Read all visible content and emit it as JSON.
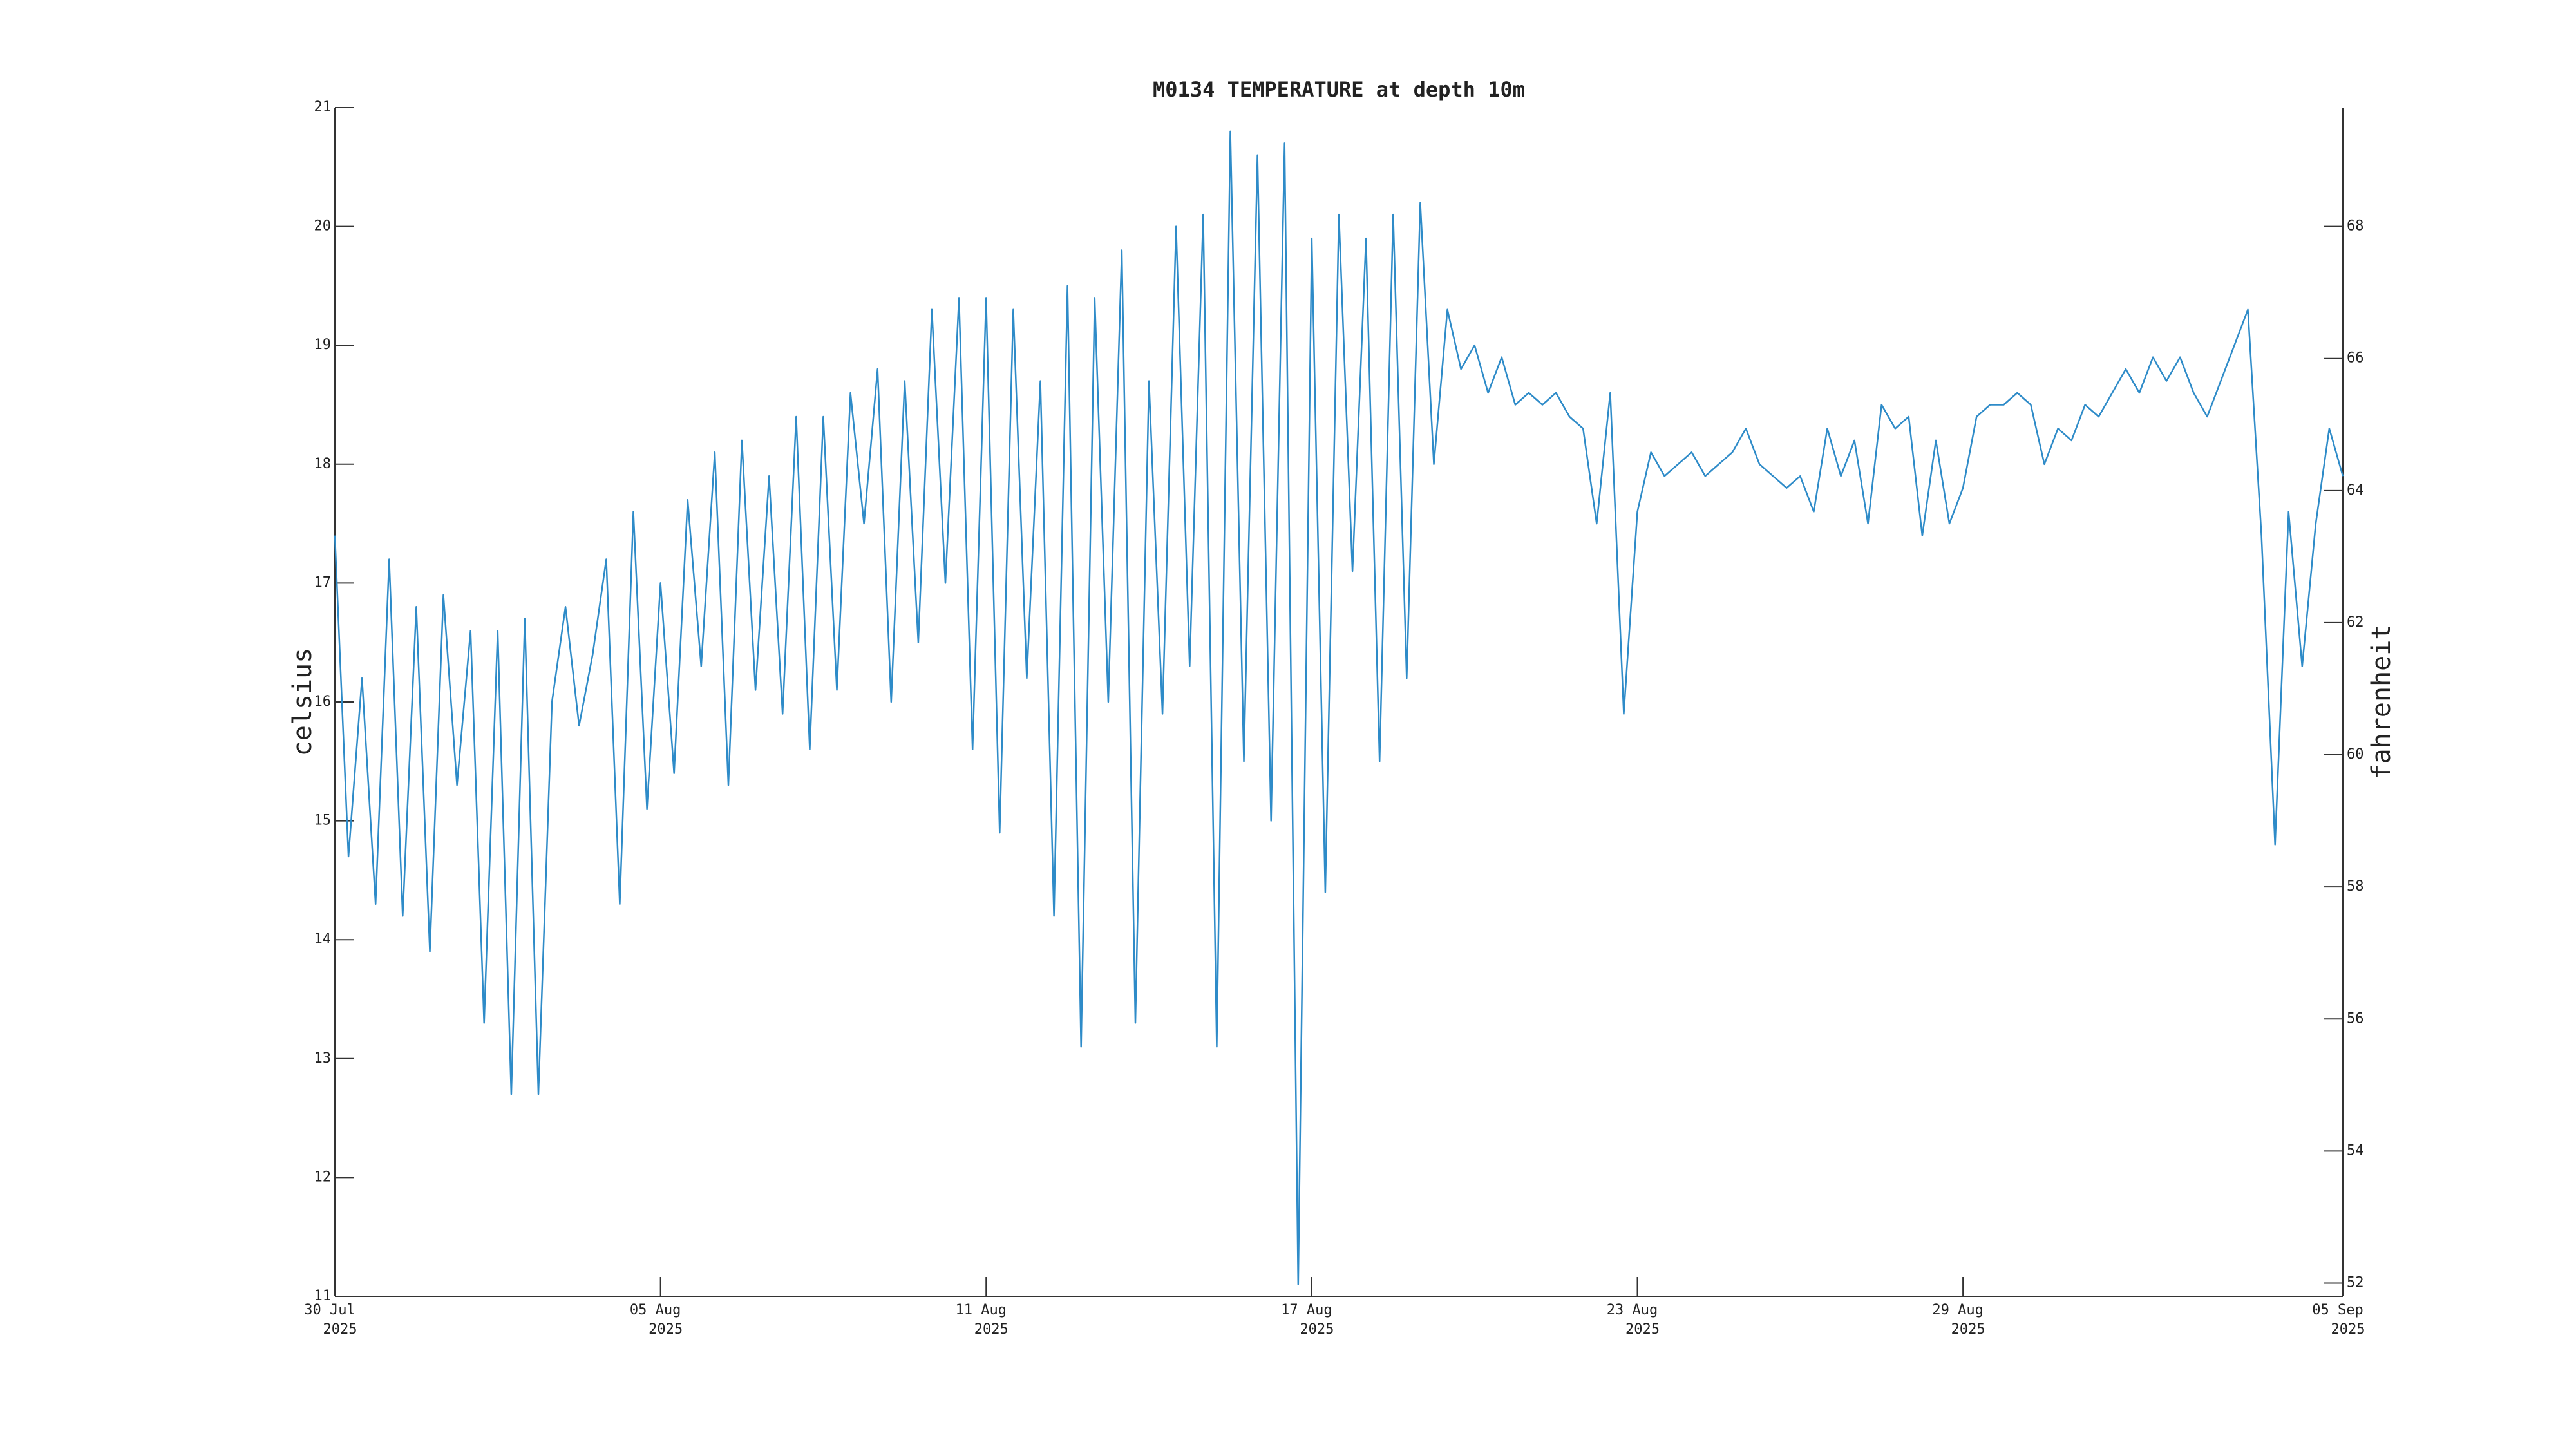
{
  "chart_data": {
    "type": "line",
    "title": "M0134 TEMPERATURE at depth 10m",
    "ylabel": "celsius",
    "y2label": "fahrenheit",
    "color": "#2e8bc8",
    "xlim": [
      "2025-07-30 00:00",
      "2025-09-05 00:00"
    ],
    "xticks": [
      {
        "value": "2025-07-30 00:00",
        "label": [
          "30 Jul",
          "2025"
        ]
      },
      {
        "value": "2025-08-05 00:00",
        "label": [
          "05 Aug",
          "2025"
        ]
      },
      {
        "value": "2025-08-11 00:00",
        "label": [
          "11 Aug",
          "2025"
        ]
      },
      {
        "value": "2025-08-17 00:00",
        "label": [
          "17 Aug",
          "2025"
        ]
      },
      {
        "value": "2025-08-23 00:00",
        "label": [
          "23 Aug",
          "2025"
        ]
      },
      {
        "value": "2025-08-29 00:00",
        "label": [
          "29 Aug",
          "2025"
        ]
      },
      {
        "value": "2025-09-05 00:00",
        "label": [
          "05 Sep",
          "2025"
        ]
      }
    ],
    "ylim": [
      11,
      21
    ],
    "yticks": [
      11,
      12,
      13,
      14,
      15,
      16,
      17,
      18,
      19,
      20,
      21
    ],
    "y2lim": [
      51.8,
      69.8
    ],
    "y2ticks": [
      52,
      54,
      56,
      58,
      60,
      62,
      64,
      66,
      68
    ],
    "x": [
      "2025-07-30 00:00",
      "2025-07-30 06:00",
      "2025-07-30 12:00",
      "2025-07-30 18:00",
      "2025-07-31 00:00",
      "2025-07-31 06:00",
      "2025-07-31 12:00",
      "2025-07-31 18:00",
      "2025-08-01 00:00",
      "2025-08-01 06:00",
      "2025-08-01 12:00",
      "2025-08-01 18:00",
      "2025-08-02 00:00",
      "2025-08-02 06:00",
      "2025-08-02 12:00",
      "2025-08-02 18:00",
      "2025-08-03 00:00",
      "2025-08-03 06:00",
      "2025-08-03 12:00",
      "2025-08-03 18:00",
      "2025-08-04 00:00",
      "2025-08-04 06:00",
      "2025-08-04 12:00",
      "2025-08-04 18:00",
      "2025-08-05 00:00",
      "2025-08-05 06:00",
      "2025-08-05 12:00",
      "2025-08-05 18:00",
      "2025-08-06 00:00",
      "2025-08-06 06:00",
      "2025-08-06 12:00",
      "2025-08-06 18:00",
      "2025-08-07 00:00",
      "2025-08-07 06:00",
      "2025-08-07 12:00",
      "2025-08-07 18:00",
      "2025-08-08 00:00",
      "2025-08-08 06:00",
      "2025-08-08 12:00",
      "2025-08-08 18:00",
      "2025-08-09 00:00",
      "2025-08-09 06:00",
      "2025-08-09 12:00",
      "2025-08-09 18:00",
      "2025-08-10 00:00",
      "2025-08-10 06:00",
      "2025-08-10 12:00",
      "2025-08-10 18:00",
      "2025-08-11 00:00",
      "2025-08-11 06:00",
      "2025-08-11 12:00",
      "2025-08-11 18:00",
      "2025-08-12 00:00",
      "2025-08-12 06:00",
      "2025-08-12 12:00",
      "2025-08-12 18:00",
      "2025-08-13 00:00",
      "2025-08-13 06:00",
      "2025-08-13 12:00",
      "2025-08-13 18:00",
      "2025-08-14 00:00",
      "2025-08-14 06:00",
      "2025-08-14 12:00",
      "2025-08-14 18:00",
      "2025-08-15 00:00",
      "2025-08-15 06:00",
      "2025-08-15 12:00",
      "2025-08-15 18:00",
      "2025-08-16 00:00",
      "2025-08-16 06:00",
      "2025-08-16 12:00",
      "2025-08-16 18:00",
      "2025-08-17 00:00",
      "2025-08-17 06:00",
      "2025-08-17 12:00",
      "2025-08-17 18:00",
      "2025-08-18 00:00",
      "2025-08-18 06:00",
      "2025-08-18 12:00",
      "2025-08-18 18:00",
      "2025-08-19 00:00",
      "2025-08-19 06:00",
      "2025-08-19 12:00",
      "2025-08-19 18:00",
      "2025-08-20 00:00",
      "2025-08-20 06:00",
      "2025-08-20 12:00",
      "2025-08-20 18:00",
      "2025-08-21 00:00",
      "2025-08-21 06:00",
      "2025-08-21 12:00",
      "2025-08-21 18:00",
      "2025-08-22 00:00",
      "2025-08-22 06:00",
      "2025-08-22 12:00",
      "2025-08-22 18:00",
      "2025-08-23 00:00",
      "2025-08-23 06:00",
      "2025-08-23 12:00",
      "2025-08-23 18:00",
      "2025-08-24 00:00",
      "2025-08-24 06:00",
      "2025-08-24 12:00",
      "2025-08-24 18:00",
      "2025-08-25 00:00",
      "2025-08-25 06:00",
      "2025-08-25 12:00",
      "2025-08-25 18:00",
      "2025-08-26 00:00",
      "2025-08-26 06:00",
      "2025-08-26 12:00",
      "2025-08-26 18:00",
      "2025-08-27 00:00",
      "2025-08-27 06:00",
      "2025-08-27 12:00",
      "2025-08-27 18:00",
      "2025-08-28 00:00",
      "2025-08-28 06:00",
      "2025-08-28 12:00",
      "2025-08-28 18:00",
      "2025-08-29 00:00",
      "2025-08-29 06:00",
      "2025-08-29 12:00",
      "2025-08-29 18:00",
      "2025-08-30 00:00",
      "2025-08-30 06:00",
      "2025-08-30 12:00",
      "2025-08-30 18:00",
      "2025-08-31 00:00",
      "2025-08-31 06:00",
      "2025-08-31 12:00",
      "2025-08-31 18:00",
      "2025-09-01 00:00",
      "2025-09-01 06:00",
      "2025-09-01 12:00",
      "2025-09-01 18:00",
      "2025-09-02 00:00",
      "2025-09-02 06:00",
      "2025-09-02 12:00",
      "2025-09-02 18:00",
      "2025-09-03 00:00",
      "2025-09-03 06:00",
      "2025-09-03 12:00",
      "2025-09-03 18:00",
      "2025-09-04 00:00",
      "2025-09-04 06:00",
      "2025-09-04 12:00",
      "2025-09-04 18:00",
      "2025-09-05 00:00"
    ],
    "values": [
      17.4,
      14.7,
      16.2,
      14.3,
      17.2,
      14.2,
      16.8,
      13.9,
      16.9,
      15.3,
      16.6,
      13.3,
      16.6,
      12.7,
      16.7,
      12.7,
      16.0,
      16.8,
      15.8,
      16.4,
      17.2,
      14.3,
      17.6,
      15.1,
      17.0,
      15.4,
      17.7,
      16.3,
      18.1,
      15.3,
      18.2,
      16.1,
      17.9,
      15.9,
      18.4,
      15.6,
      18.4,
      16.1,
      18.6,
      17.5,
      18.8,
      16.0,
      18.7,
      16.5,
      19.3,
      17.0,
      19.4,
      15.6,
      19.4,
      14.9,
      19.3,
      16.2,
      18.7,
      14.2,
      19.5,
      13.1,
      19.4,
      16.0,
      19.8,
      13.3,
      18.7,
      15.9,
      20.0,
      16.3,
      20.1,
      13.1,
      20.8,
      15.5,
      20.6,
      15.0,
      20.7,
      11.1,
      19.9,
      14.4,
      20.1,
      17.1,
      19.9,
      15.5,
      20.1,
      16.2,
      20.2,
      18.0,
      19.3,
      18.8,
      19.0,
      18.6,
      18.9,
      18.5,
      18.6,
      18.5,
      18.6,
      18.4,
      18.3,
      17.5,
      18.6,
      15.9,
      17.6,
      18.1,
      17.9,
      18.0,
      18.1,
      17.9,
      18.0,
      18.1,
      18.3,
      18.0,
      17.9,
      17.8,
      17.9,
      17.6,
      18.3,
      17.9,
      18.2,
      17.5,
      18.5,
      18.3,
      18.4,
      17.4,
      18.2,
      17.5,
      17.8,
      18.4,
      18.5,
      18.5,
      18.6,
      18.5,
      18.0,
      18.3,
      18.2,
      18.5,
      18.4,
      18.6,
      18.8,
      18.6,
      18.9,
      18.7,
      18.9,
      18.6,
      18.4,
      18.7,
      19.0,
      19.3,
      17.4,
      14.8,
      17.6,
      16.3,
      17.5,
      18.3,
      17.9
    ]
  }
}
